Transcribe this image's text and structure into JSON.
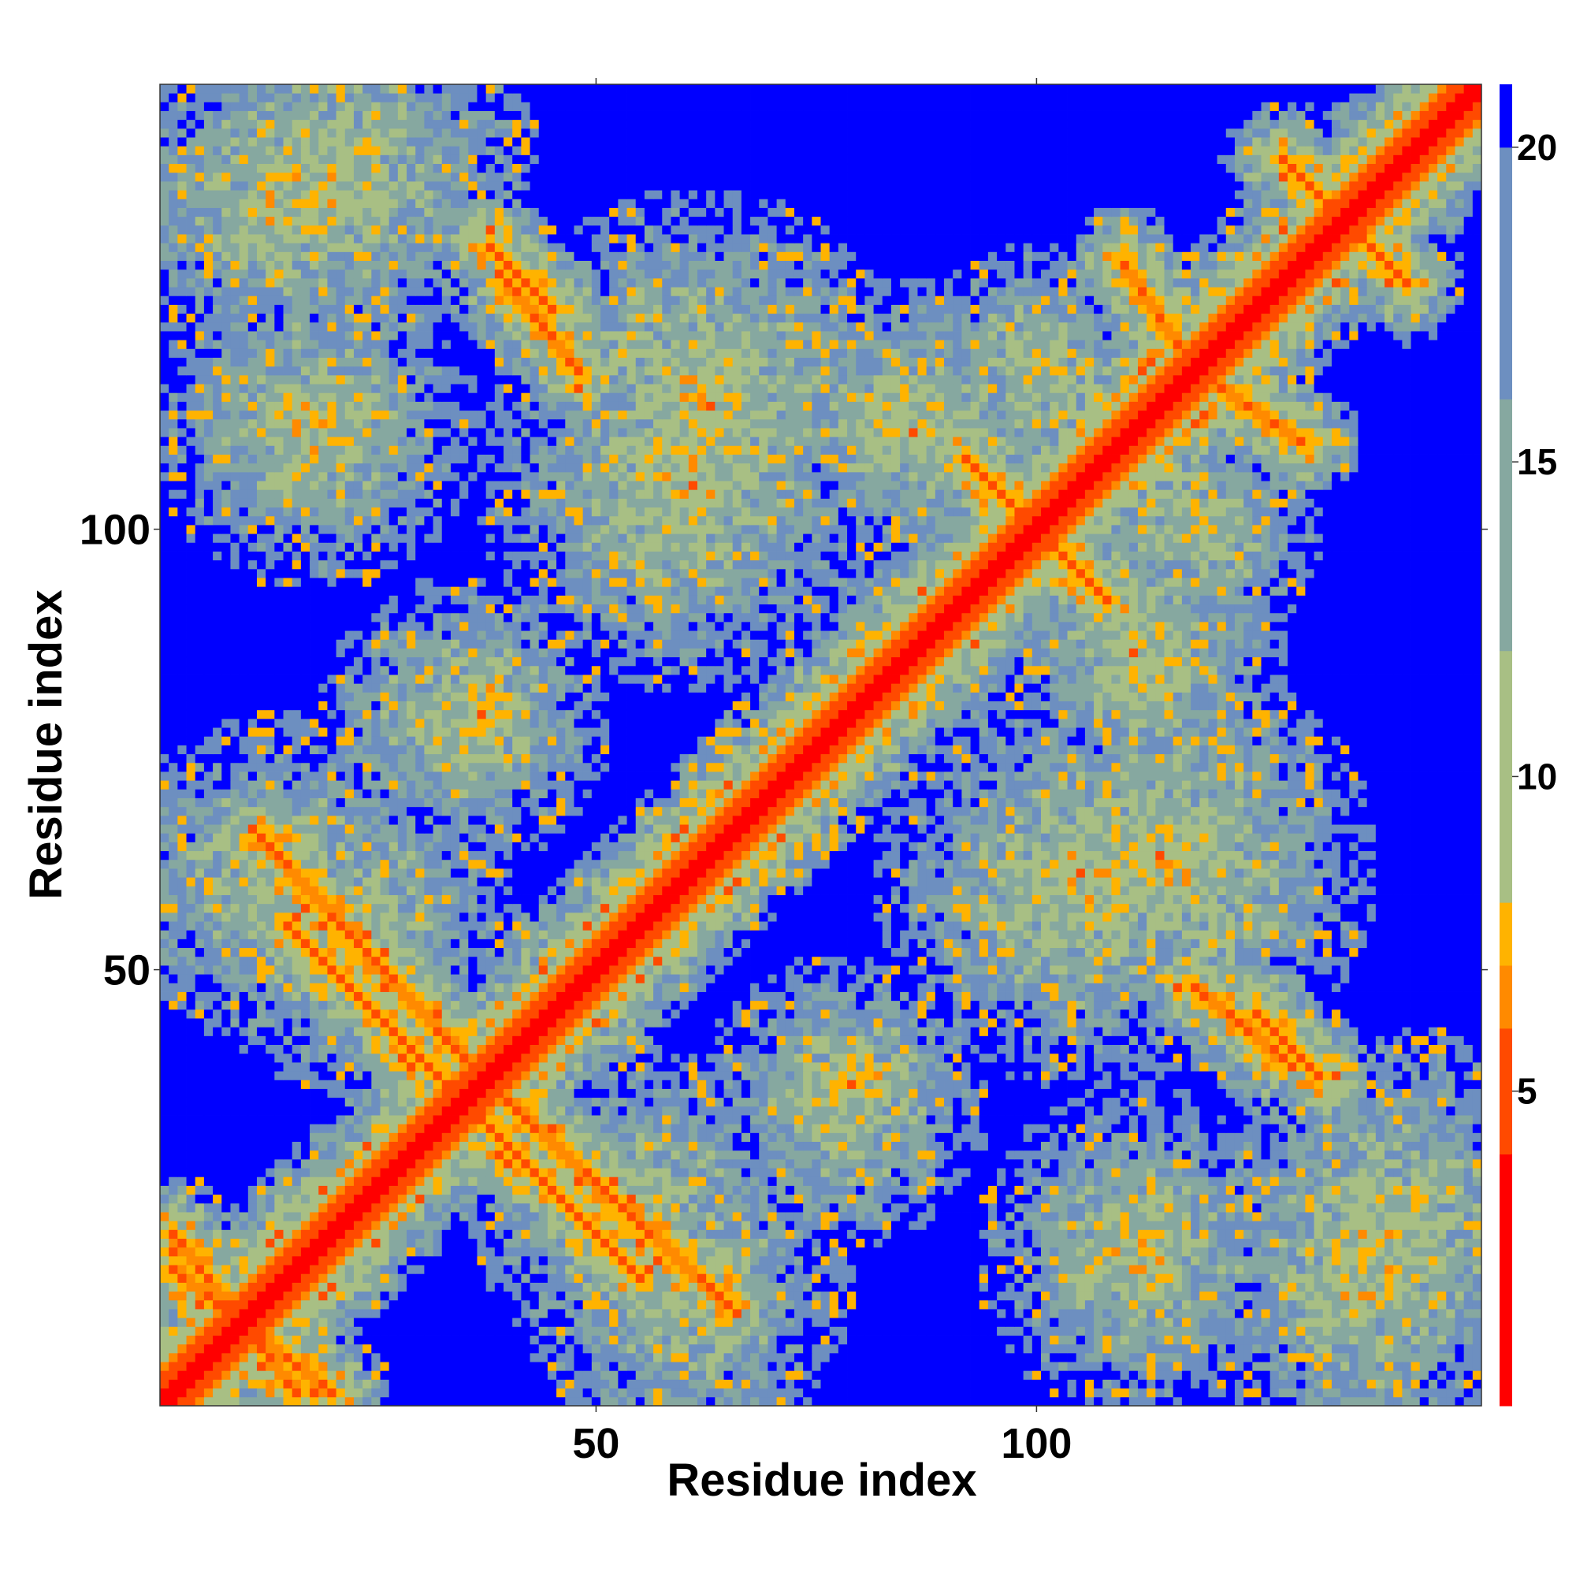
{
  "chart_data": {
    "type": "heatmap",
    "title": "",
    "xlabel": "Residue index",
    "ylabel": "Residue index",
    "n_residues": 150,
    "xlim": [
      1,
      150
    ],
    "ylim": [
      1,
      150
    ],
    "x_ticks": [
      50,
      100
    ],
    "y_ticks": [
      50,
      100
    ],
    "colorbar": {
      "range": [
        0,
        21
      ],
      "ticks": [
        5,
        10,
        15,
        20
      ],
      "colors": [
        {
          "min": 0,
          "max": 4,
          "color": "#ff0000"
        },
        {
          "min": 4,
          "max": 6,
          "color": "#ff4a00"
        },
        {
          "min": 6,
          "max": 7,
          "color": "#ff8a00"
        },
        {
          "min": 7,
          "max": 8,
          "color": "#ffb300"
        },
        {
          "min": 8,
          "max": 12,
          "color": "#a8bf84"
        },
        {
          "min": 12,
          "max": 16,
          "color": "#86a8a0"
        },
        {
          "min": 16,
          "max": 20,
          "color": "#6d8fc0"
        },
        {
          "min": 20,
          "max": 21,
          "color": "#0000ff"
        }
      ]
    },
    "contact_bands": [
      {
        "x0": 1,
        "y0": 1,
        "x1": 150,
        "y1": 150,
        "kind": "diagonal"
      },
      {
        "x0": 2,
        "y0": 16,
        "x1": 20,
        "y1": 2,
        "kind": "antiparallel"
      },
      {
        "x0": 12,
        "y0": 65,
        "x1": 35,
        "y1": 40,
        "kind": "antiparallel"
      },
      {
        "x0": 35,
        "y0": 35,
        "x1": 55,
        "y1": 15,
        "kind": "antiparallel"
      },
      {
        "x0": 40,
        "y0": 128,
        "x1": 48,
        "y1": 118,
        "kind": "antiparallel"
      },
      {
        "x0": 118,
        "y0": 118,
        "x1": 130,
        "y1": 110,
        "kind": "antiparallel"
      },
      {
        "x0": 95,
        "y0": 105,
        "x1": 108,
        "y1": 92,
        "kind": "antiparallel"
      },
      {
        "x0": 125,
        "y0": 45,
        "x1": 132,
        "y1": 38,
        "kind": "antiparallel"
      },
      {
        "x0": 130,
        "y0": 140,
        "x1": 142,
        "y1": 128,
        "kind": "antiparallel"
      }
    ],
    "contact_patches": [
      {
        "cx": 15,
        "cy": 138,
        "r": 18
      },
      {
        "cx": 60,
        "cy": 105,
        "r": 20
      },
      {
        "cx": 85,
        "cy": 112,
        "r": 14
      },
      {
        "cx": 35,
        "cy": 78,
        "r": 14
      },
      {
        "cx": 22,
        "cy": 55,
        "r": 16
      },
      {
        "cx": 80,
        "cy": 37,
        "r": 12
      },
      {
        "cx": 115,
        "cy": 62,
        "r": 20
      },
      {
        "cx": 140,
        "cy": 20,
        "r": 20
      },
      {
        "cx": 112,
        "cy": 18,
        "r": 16
      },
      {
        "cx": 60,
        "cy": 14,
        "r": 16
      },
      {
        "cx": 100,
        "cy": 118,
        "r": 12
      }
    ]
  }
}
